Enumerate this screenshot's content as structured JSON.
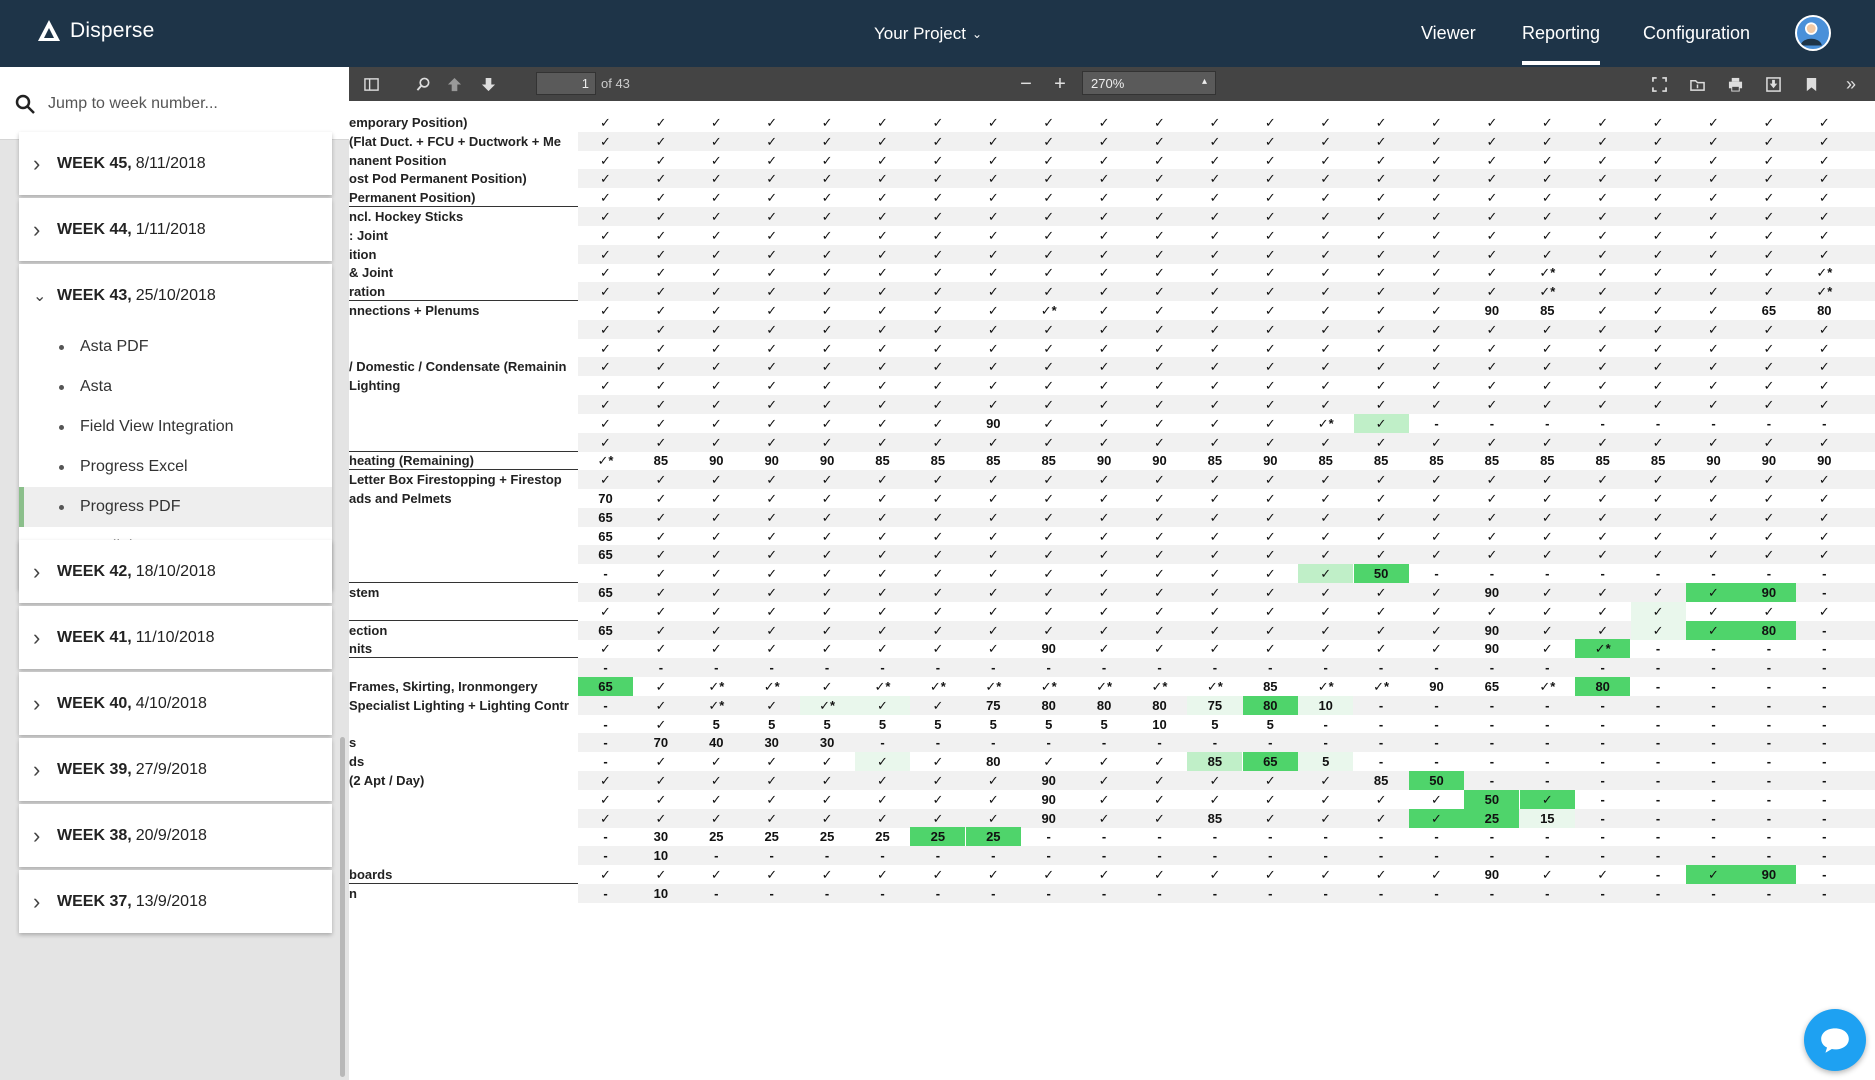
{
  "app": {
    "name": "Disperse"
  },
  "header": {
    "project": "Your Project",
    "nav": [
      "Viewer",
      "Reporting",
      "Configuration"
    ],
    "active": "Reporting"
  },
  "sidebar": {
    "search_placeholder": "Jump to week number...",
    "weeks": [
      {
        "week": "WEEK 45,",
        "date": "8/11/2018",
        "expanded": false
      },
      {
        "week": "WEEK 44,",
        "date": "1/11/2018",
        "expanded": false
      },
      {
        "week": "WEEK 43,",
        "date": "25/10/2018",
        "expanded": true,
        "items": [
          "Asta PDF",
          "Asta",
          "Field View Integration",
          "Progress Excel",
          "Progress PDF",
          "Spotlights PDF"
        ],
        "active_item": "Progress PDF"
      },
      {
        "week": "WEEK 42,",
        "date": "18/10/2018",
        "expanded": false
      },
      {
        "week": "WEEK 41,",
        "date": "11/10/2018",
        "expanded": false
      },
      {
        "week": "WEEK 40,",
        "date": "4/10/2018",
        "expanded": false
      },
      {
        "week": "WEEK 39,",
        "date": "27/9/2018",
        "expanded": false
      },
      {
        "week": "WEEK 38,",
        "date": "20/9/2018",
        "expanded": false
      },
      {
        "week": "WEEK 37,",
        "date": "13/9/2018",
        "expanded": false
      }
    ]
  },
  "pdf": {
    "page": "1",
    "page_total": "of 43",
    "zoom": "270%",
    "row_labels": [
      "emporary Position)",
      "(Flat Duct. + FCU + Ductwork  + Me",
      "nanent Position",
      "ost Pod Permanent Position)",
      "Permanent Position)",
      "ncl. Hockey Sticks",
      ": Joint",
      "ition",
      "& Joint",
      "ration",
      "nnections + Plenums",
      "",
      "",
      "/ Domestic / Condensate (Remainin",
      "Lighting",
      "",
      "",
      "",
      "heating (Remaining)",
      " Letter Box Firestopping + Firestop",
      "ads and Pelmets",
      "",
      "",
      "",
      "",
      "stem",
      "",
      "ection",
      "nits",
      "",
      " Frames, Skirting, Ironmongery",
      "Specialist Lighting + Lighting Contr",
      "",
      "s",
      "ds",
      " (2 Apt / Day)",
      "",
      "",
      "",
      "",
      "boards",
      "n"
    ],
    "grid": [
      [
        "✓",
        "✓",
        "✓",
        "✓",
        "✓",
        "✓",
        "✓",
        "✓",
        "✓",
        "✓",
        "✓",
        "✓",
        "✓",
        "✓",
        "✓",
        "✓",
        "✓",
        "✓",
        "✓",
        "✓",
        "✓",
        "✓",
        "✓"
      ],
      [
        "✓",
        "✓",
        "✓",
        "✓",
        "✓",
        "✓",
        "✓",
        "✓",
        "✓",
        "✓",
        "✓",
        "✓",
        "✓",
        "✓",
        "✓",
        "✓",
        "✓",
        "✓",
        "✓",
        "✓",
        "✓",
        "✓",
        "✓"
      ],
      [
        "✓",
        "✓",
        "✓",
        "✓",
        "✓",
        "✓",
        "✓",
        "✓",
        "✓",
        "✓",
        "✓",
        "✓",
        "✓",
        "✓",
        "✓",
        "✓",
        "✓",
        "✓",
        "✓",
        "✓",
        "✓",
        "✓",
        "✓"
      ],
      [
        "✓",
        "✓",
        "✓",
        "✓",
        "✓",
        "✓",
        "✓",
        "✓",
        "✓",
        "✓",
        "✓",
        "✓",
        "✓",
        "✓",
        "✓",
        "✓",
        "✓",
        "✓",
        "✓",
        "✓",
        "✓",
        "✓",
        "✓"
      ],
      [
        "✓",
        "✓",
        "✓",
        "✓",
        "✓",
        "✓",
        "✓",
        "✓",
        "✓",
        "✓",
        "✓",
        "✓",
        "✓",
        "✓",
        "✓",
        "✓",
        "✓",
        "✓",
        "✓",
        "✓",
        "✓",
        "✓",
        "✓"
      ],
      [
        "✓",
        "✓",
        "✓",
        "✓",
        "✓",
        "✓",
        "✓",
        "✓",
        "✓",
        "✓",
        "✓",
        "✓",
        "✓",
        "✓",
        "✓",
        "✓",
        "✓",
        "✓",
        "✓",
        "✓",
        "✓",
        "✓",
        "✓"
      ],
      [
        "✓",
        "✓",
        "✓",
        "✓",
        "✓",
        "✓",
        "✓",
        "✓",
        "✓",
        "✓",
        "✓",
        "✓",
        "✓",
        "✓",
        "✓",
        "✓",
        "✓",
        "✓",
        "✓",
        "✓",
        "✓",
        "✓",
        "✓"
      ],
      [
        "✓",
        "✓",
        "✓",
        "✓",
        "✓",
        "✓",
        "✓",
        "✓",
        "✓",
        "✓",
        "✓",
        "✓",
        "✓",
        "✓",
        "✓",
        "✓",
        "✓",
        "✓",
        "✓",
        "✓",
        "✓",
        "✓",
        "✓"
      ],
      [
        "✓",
        "✓",
        "✓",
        "✓",
        "✓",
        "✓",
        "✓",
        "✓",
        "✓",
        "✓",
        "✓",
        "✓",
        "✓",
        "✓",
        "✓",
        "✓",
        "✓",
        "✓*",
        "✓",
        "✓",
        "✓",
        "✓",
        "✓*"
      ],
      [
        "✓",
        "✓",
        "✓",
        "✓",
        "✓",
        "✓",
        "✓",
        "✓",
        "✓",
        "✓",
        "✓",
        "✓",
        "✓",
        "✓",
        "✓",
        "✓",
        "✓",
        "✓*",
        "✓",
        "✓",
        "✓",
        "✓",
        "✓*"
      ],
      [
        "✓",
        "✓",
        "✓",
        "✓",
        "✓",
        "✓",
        "✓",
        "✓",
        "✓*",
        "✓",
        "✓",
        "✓",
        "✓",
        "✓",
        "✓",
        "✓",
        "90",
        "85",
        "✓",
        "✓",
        "✓",
        "65",
        "80"
      ],
      [
        "✓",
        "✓",
        "✓",
        "✓",
        "✓",
        "✓",
        "✓",
        "✓",
        "✓",
        "✓",
        "✓",
        "✓",
        "✓",
        "✓",
        "✓",
        "✓",
        "✓",
        "✓",
        "✓",
        "✓",
        "✓",
        "✓",
        "✓"
      ],
      [
        "✓",
        "✓",
        "✓",
        "✓",
        "✓",
        "✓",
        "✓",
        "✓",
        "✓",
        "✓",
        "✓",
        "✓",
        "✓",
        "✓",
        "✓",
        "✓",
        "✓",
        "✓",
        "✓",
        "✓",
        "✓",
        "✓",
        "✓"
      ],
      [
        "✓",
        "✓",
        "✓",
        "✓",
        "✓",
        "✓",
        "✓",
        "✓",
        "✓",
        "✓",
        "✓",
        "✓",
        "✓",
        "✓",
        "✓",
        "✓",
        "✓",
        "✓",
        "✓",
        "✓",
        "✓",
        "✓",
        "✓"
      ],
      [
        "✓",
        "✓",
        "✓",
        "✓",
        "✓",
        "✓",
        "✓",
        "✓",
        "✓",
        "✓",
        "✓",
        "✓",
        "✓",
        "✓",
        "✓",
        "✓",
        "✓",
        "✓",
        "✓",
        "✓",
        "✓",
        "✓",
        "✓"
      ],
      [
        "✓",
        "✓",
        "✓",
        "✓",
        "✓",
        "✓",
        "✓",
        "✓",
        "✓",
        "✓",
        "✓",
        "✓",
        "✓",
        "✓",
        "✓",
        "✓",
        "✓",
        "✓",
        "✓",
        "✓",
        "✓",
        "✓",
        "✓"
      ],
      [
        "✓",
        "✓",
        "✓",
        "✓",
        "✓",
        "✓",
        "✓",
        "90",
        "✓",
        "✓",
        "✓",
        "✓",
        "✓",
        "✓*",
        "✓",
        "-",
        "-",
        "-",
        "-",
        "-",
        "-",
        "-",
        "-"
      ],
      [
        "✓",
        "✓",
        "✓",
        "✓",
        "✓",
        "✓",
        "✓",
        "✓",
        "✓",
        "✓",
        "✓",
        "✓",
        "✓",
        "✓",
        "✓",
        "✓",
        "✓",
        "✓",
        "✓",
        "✓",
        "✓",
        "✓",
        "✓"
      ],
      [
        "✓*",
        "85",
        "90",
        "90",
        "90",
        "85",
        "85",
        "85",
        "85",
        "90",
        "90",
        "85",
        "90",
        "85",
        "85",
        "85",
        "85",
        "85",
        "85",
        "85",
        "90",
        "90",
        "90"
      ],
      [
        "✓",
        "✓",
        "✓",
        "✓",
        "✓",
        "✓",
        "✓",
        "✓",
        "✓",
        "✓",
        "✓",
        "✓",
        "✓",
        "✓",
        "✓",
        "✓",
        "✓",
        "✓",
        "✓",
        "✓",
        "✓",
        "✓",
        "✓"
      ],
      [
        "70",
        "✓",
        "✓",
        "✓",
        "✓",
        "✓",
        "✓",
        "✓",
        "✓",
        "✓",
        "✓",
        "✓",
        "✓",
        "✓",
        "✓",
        "✓",
        "✓",
        "✓",
        "✓",
        "✓",
        "✓",
        "✓",
        "✓"
      ],
      [
        "65",
        "✓",
        "✓",
        "✓",
        "✓",
        "✓",
        "✓",
        "✓",
        "✓",
        "✓",
        "✓",
        "✓",
        "✓",
        "✓",
        "✓",
        "✓",
        "✓",
        "✓",
        "✓",
        "✓",
        "✓",
        "✓",
        "✓"
      ],
      [
        "65",
        "✓",
        "✓",
        "✓",
        "✓",
        "✓",
        "✓",
        "✓",
        "✓",
        "✓",
        "✓",
        "✓",
        "✓",
        "✓",
        "✓",
        "✓",
        "✓",
        "✓",
        "✓",
        "✓",
        "✓",
        "✓",
        "✓"
      ],
      [
        "65",
        "✓",
        "✓",
        "✓",
        "✓",
        "✓",
        "✓",
        "✓",
        "✓",
        "✓",
        "✓",
        "✓",
        "✓",
        "✓",
        "✓",
        "✓",
        "✓",
        "✓",
        "✓",
        "✓",
        "✓",
        "✓",
        "✓"
      ],
      [
        "-",
        "✓",
        "✓",
        "✓",
        "✓",
        "✓",
        "✓",
        "✓",
        "✓",
        "✓",
        "✓",
        "✓",
        "✓",
        "✓",
        "50",
        "-",
        "-",
        "-",
        "-",
        "-",
        "-",
        "-",
        "-"
      ],
      [
        "65",
        "✓",
        "✓",
        "✓",
        "✓",
        "✓",
        "✓",
        "✓",
        "✓",
        "✓",
        "✓",
        "✓",
        "✓",
        "✓",
        "✓",
        "✓",
        "90",
        "✓",
        "✓",
        "✓",
        "✓",
        "90",
        "-"
      ],
      [
        "✓",
        "✓",
        "✓",
        "✓",
        "✓",
        "✓",
        "✓",
        "✓",
        "✓",
        "✓",
        "✓",
        "✓",
        "✓",
        "✓",
        "✓",
        "✓",
        "✓",
        "✓",
        "✓",
        "✓",
        "✓",
        "✓",
        "✓"
      ],
      [
        "65",
        "✓",
        "✓",
        "✓",
        "✓",
        "✓",
        "✓",
        "✓",
        "✓",
        "✓",
        "✓",
        "✓",
        "✓",
        "✓",
        "✓",
        "✓",
        "90",
        "✓",
        "✓",
        "✓",
        "✓",
        "80",
        "-"
      ],
      [
        "✓",
        "✓",
        "✓",
        "✓",
        "✓",
        "✓",
        "✓",
        "✓",
        "90",
        "✓",
        "✓",
        "✓",
        "✓",
        "✓",
        "✓",
        "✓",
        "90",
        "✓",
        "✓*",
        "-",
        "-",
        "-",
        "-"
      ],
      [
        "-",
        "-",
        "-",
        "-",
        "-",
        "-",
        "-",
        "-",
        "-",
        "-",
        "-",
        "-",
        "-",
        "-",
        "-",
        "-",
        "-",
        "-",
        "-",
        "-",
        "-",
        "-",
        "-"
      ],
      [
        "65",
        "✓",
        "✓*",
        "✓*",
        "✓",
        "✓*",
        "✓*",
        "✓*",
        "✓*",
        "✓*",
        "✓*",
        "✓*",
        "85",
        "✓*",
        "✓*",
        "90",
        "65",
        "✓*",
        "80",
        "-",
        "-",
        "-",
        "-"
      ],
      [
        "-",
        "✓",
        "✓*",
        "✓",
        "✓*",
        "✓",
        "✓",
        "75",
        "80",
        "80",
        "80",
        "75",
        "80",
        "10",
        "-",
        "-",
        "-",
        "-",
        "-",
        "-",
        "-",
        "-",
        "-"
      ],
      [
        "-",
        "✓",
        "5",
        "5",
        "5",
        "5",
        "5",
        "5",
        "5",
        "5",
        "10",
        "5",
        "5",
        "-",
        "-",
        "-",
        "-",
        "-",
        "-",
        "-",
        "-",
        "-",
        "-"
      ],
      [
        "-",
        "70",
        "40",
        "30",
        "30",
        "-",
        "-",
        "-",
        "-",
        "-",
        "-",
        "-",
        "-",
        "-",
        "-",
        "-",
        "-",
        "-",
        "-",
        "-",
        "-",
        "-",
        "-"
      ],
      [
        "-",
        "✓",
        "✓",
        "✓",
        "✓",
        "✓",
        "✓",
        "80",
        "✓",
        "✓",
        "✓",
        "85",
        "65",
        "5",
        "-",
        "-",
        "-",
        "-",
        "-",
        "-",
        "-",
        "-",
        "-"
      ],
      [
        "✓",
        "✓",
        "✓",
        "✓",
        "✓",
        "✓",
        "✓",
        "✓",
        "90",
        "✓",
        "✓",
        "✓",
        "✓",
        "✓",
        "85",
        "50",
        "-",
        "-",
        "-",
        "-",
        "-",
        "-",
        "-"
      ],
      [
        "✓",
        "✓",
        "✓",
        "✓",
        "✓",
        "✓",
        "✓",
        "✓",
        "90",
        "✓",
        "✓",
        "✓",
        "✓",
        "✓",
        "✓",
        "✓",
        "50",
        "✓",
        "-",
        "-",
        "-",
        "-",
        "-"
      ],
      [
        "✓",
        "✓",
        "✓",
        "✓",
        "✓",
        "✓",
        "✓",
        "✓",
        "90",
        "✓",
        "✓",
        "85",
        "✓",
        "✓",
        "✓",
        "✓",
        "25",
        "15",
        "-",
        "-",
        "-",
        "-",
        "-"
      ],
      [
        "-",
        "30",
        "25",
        "25",
        "25",
        "25",
        "25",
        "25",
        "-",
        "-",
        "-",
        "-",
        "-",
        "-",
        "-",
        "-",
        "-",
        "-",
        "-",
        "-",
        "-",
        "-",
        "-"
      ],
      [
        "-",
        "10",
        "-",
        "-",
        "-",
        "-",
        "-",
        "-",
        "-",
        "-",
        "-",
        "-",
        "-",
        "-",
        "-",
        "-",
        "-",
        "-",
        "-",
        "-",
        "-",
        "-",
        "-"
      ],
      [
        "✓",
        "✓",
        "✓",
        "✓",
        "✓",
        "✓",
        "✓",
        "✓",
        "✓",
        "✓",
        "✓",
        "✓",
        "✓",
        "✓",
        "✓",
        "✓",
        "90",
        "✓",
        "✓",
        "-",
        "✓",
        "90",
        "-"
      ],
      [
        "-",
        "10",
        "-",
        "-",
        "-",
        "-",
        "-",
        "-",
        "-",
        "-",
        "-",
        "-",
        "-",
        "-",
        "-",
        "-",
        "-",
        "-",
        "-",
        "-",
        "-",
        "-",
        "-"
      ]
    ],
    "highlights": [
      [
        16,
        14,
        "g2"
      ],
      [
        24,
        13,
        "g2"
      ],
      [
        24,
        14,
        "g3"
      ],
      [
        25,
        20,
        "g3"
      ],
      [
        25,
        21,
        "g3"
      ],
      [
        26,
        19,
        "g1"
      ],
      [
        27,
        20,
        "g3"
      ],
      [
        27,
        21,
        "g3"
      ],
      [
        27,
        19,
        "g1"
      ],
      [
        28,
        18,
        "g3"
      ],
      [
        30,
        0,
        "g3"
      ],
      [
        30,
        18,
        "g3"
      ],
      [
        31,
        11,
        "g1"
      ],
      [
        31,
        12,
        "g3"
      ],
      [
        31,
        13,
        "g1"
      ],
      [
        31,
        4,
        "g1"
      ],
      [
        31,
        5,
        "g1"
      ],
      [
        34,
        5,
        "g1"
      ],
      [
        34,
        11,
        "g2"
      ],
      [
        34,
        12,
        "g3"
      ],
      [
        34,
        13,
        "g1"
      ],
      [
        35,
        15,
        "g3"
      ],
      [
        36,
        16,
        "g3"
      ],
      [
        36,
        17,
        "g3"
      ],
      [
        37,
        15,
        "g3"
      ],
      [
        37,
        16,
        "g3"
      ],
      [
        37,
        17,
        "g1"
      ],
      [
        38,
        6,
        "g3"
      ],
      [
        38,
        7,
        "g3"
      ],
      [
        40,
        20,
        "g3"
      ],
      [
        40,
        21,
        "g3"
      ]
    ]
  }
}
